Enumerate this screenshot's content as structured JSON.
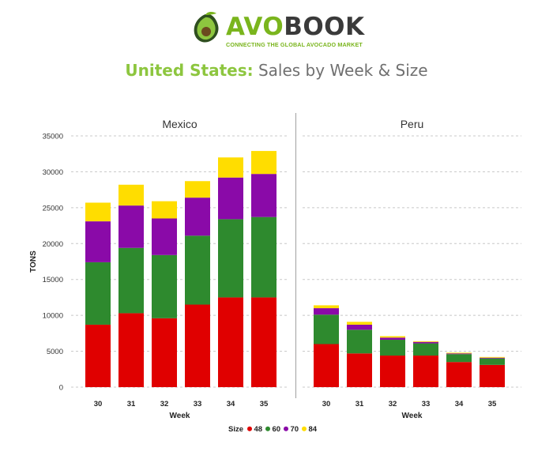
{
  "brand": {
    "name_part1": "AVO",
    "name_part2": "BOOK",
    "tagline": "CONNECTING THE GLOBAL AVOCADO MARKET",
    "colors": {
      "green": "#7ab51d",
      "dark": "#3a3a3a"
    },
    "icon": "avocado-icon"
  },
  "title": {
    "country": "United States:",
    "rest": " Sales by Week & Size"
  },
  "chart_data": {
    "type": "bar",
    "stacked": true,
    "ylabel": "TONS",
    "xlabel": "Week",
    "ylim": [
      0,
      35000
    ],
    "y_ticks": [
      0,
      5000,
      10000,
      15000,
      20000,
      25000,
      30000,
      35000
    ],
    "grid": "horizontal dashed",
    "legend": {
      "title": "Size",
      "placement": "bottom"
    },
    "panels": [
      {
        "name": "Mexico",
        "categories": [
          "30",
          "31",
          "32",
          "33",
          "34",
          "35"
        ],
        "series": [
          {
            "name": "48",
            "color": "#e00000",
            "values": [
              8700,
              10300,
              9600,
              11500,
              12500,
              12500
            ]
          },
          {
            "name": "60",
            "color": "#2e8a2e",
            "values": [
              8700,
              9100,
              8800,
              9600,
              10900,
              11200
            ]
          },
          {
            "name": "70",
            "color": "#8a0aa8",
            "values": [
              5700,
              5900,
              5100,
              5300,
              5800,
              6000
            ]
          },
          {
            "name": "84",
            "color": "#ffdd00",
            "values": [
              2600,
              2900,
              2400,
              2300,
              2800,
              3200
            ]
          }
        ]
      },
      {
        "name": "Peru",
        "categories": [
          "30",
          "31",
          "32",
          "33",
          "34",
          "35"
        ],
        "series": [
          {
            "name": "48",
            "color": "#e00000",
            "values": [
              6000,
              4700,
              4400,
              4400,
              3500,
              3100
            ]
          },
          {
            "name": "60",
            "color": "#2e8a2e",
            "values": [
              4100,
              3300,
              2200,
              1700,
              1100,
              900
            ]
          },
          {
            "name": "70",
            "color": "#8a0aa8",
            "values": [
              900,
              700,
              300,
              200,
              100,
              100
            ]
          },
          {
            "name": "84",
            "color": "#ffdd00",
            "values": [
              400,
              400,
              200,
              100,
              100,
              100
            ]
          }
        ]
      }
    ]
  }
}
